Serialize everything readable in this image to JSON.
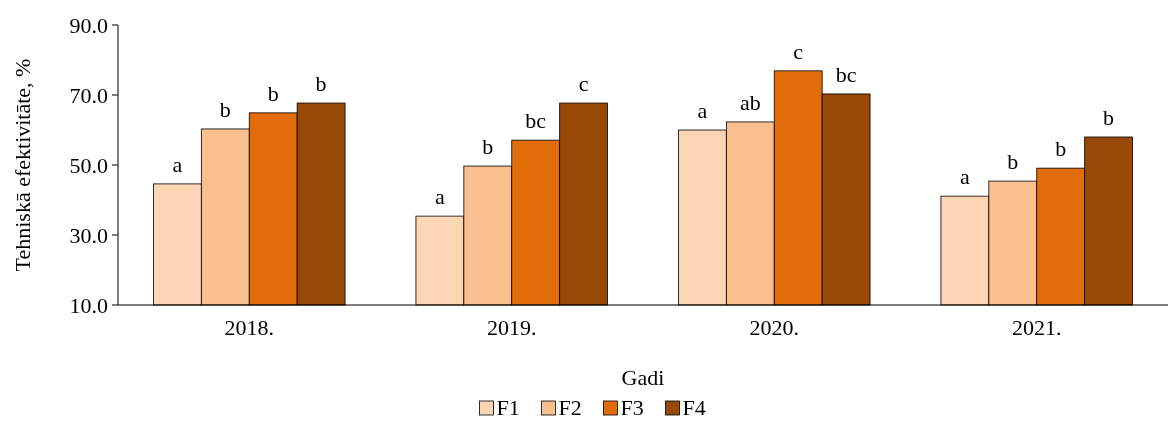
{
  "chart_data": {
    "type": "bar",
    "xlabel": "Gadi",
    "ylabel": "Tehniskā efektivitāte, %",
    "categories": [
      "2018.",
      "2019.",
      "2020.",
      "2021."
    ],
    "series": [
      {
        "name": "F1",
        "color": "#fcd5b5",
        "values": [
          44.6,
          35.4,
          60.0,
          41.1
        ],
        "value_labels": [
          "a",
          "a",
          "a",
          "a"
        ]
      },
      {
        "name": "F2",
        "color": "#f9bf8f",
        "values": [
          60.3,
          49.7,
          62.3,
          45.4
        ],
        "value_labels": [
          "b",
          "b",
          "ab",
          "b"
        ]
      },
      {
        "name": "F3",
        "color": "#e36c0a",
        "values": [
          64.9,
          57.1,
          76.9,
          49.1
        ],
        "value_labels": [
          "b",
          "bc",
          "c",
          "b"
        ]
      },
      {
        "name": "F4",
        "color": "#984807",
        "values": [
          67.7,
          67.7,
          70.3,
          58.0
        ],
        "value_labels": [
          "b",
          "c",
          "bc",
          "b"
        ]
      }
    ],
    "ylim": [
      10,
      90
    ],
    "yticks": [
      {
        "value": 10,
        "label": "10.0"
      },
      {
        "value": 30,
        "label": "30.0"
      },
      {
        "value": 50,
        "label": "50.0"
      },
      {
        "value": 70,
        "label": "70.0"
      },
      {
        "value": 90,
        "label": "90.0"
      }
    ],
    "legend": "bottom",
    "grid": false
  }
}
